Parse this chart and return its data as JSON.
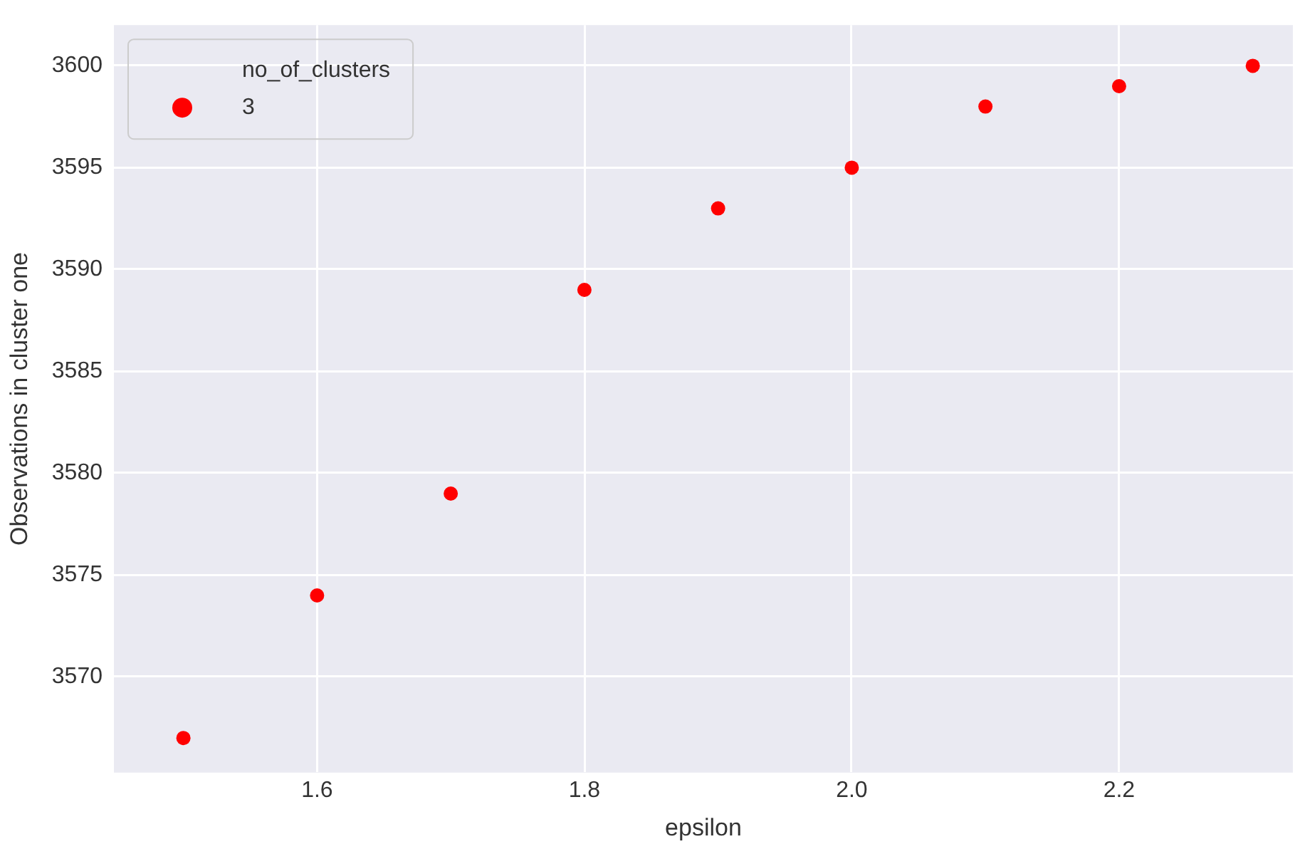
{
  "chart_data": {
    "type": "scatter",
    "xlabel": "epsilon",
    "ylabel": "Observations in cluster one",
    "legend_title": "no_of_clusters",
    "x": [
      1.5,
      1.6,
      1.7,
      1.8,
      1.9,
      2.0,
      2.1,
      2.2,
      2.3
    ],
    "series": [
      {
        "name": "3",
        "color": "#ff0000",
        "values": [
          3567,
          3574,
          3579,
          3589,
          3593,
          3595,
          3598,
          3599,
          3600
        ]
      }
    ],
    "xlim": [
      1.448,
      2.33
    ],
    "xticks": [
      {
        "value": 1.6,
        "label": "1.6"
      },
      {
        "value": 1.8,
        "label": "1.8"
      },
      {
        "value": 2.0,
        "label": "2.0"
      },
      {
        "value": 2.2,
        "label": "2.2"
      }
    ],
    "ylim": [
      3565.3,
      3602
    ],
    "yticks": [
      3570,
      3575,
      3580,
      3585,
      3590,
      3595,
      3600
    ],
    "grid": true,
    "legend": "top left",
    "marker": "circle"
  }
}
